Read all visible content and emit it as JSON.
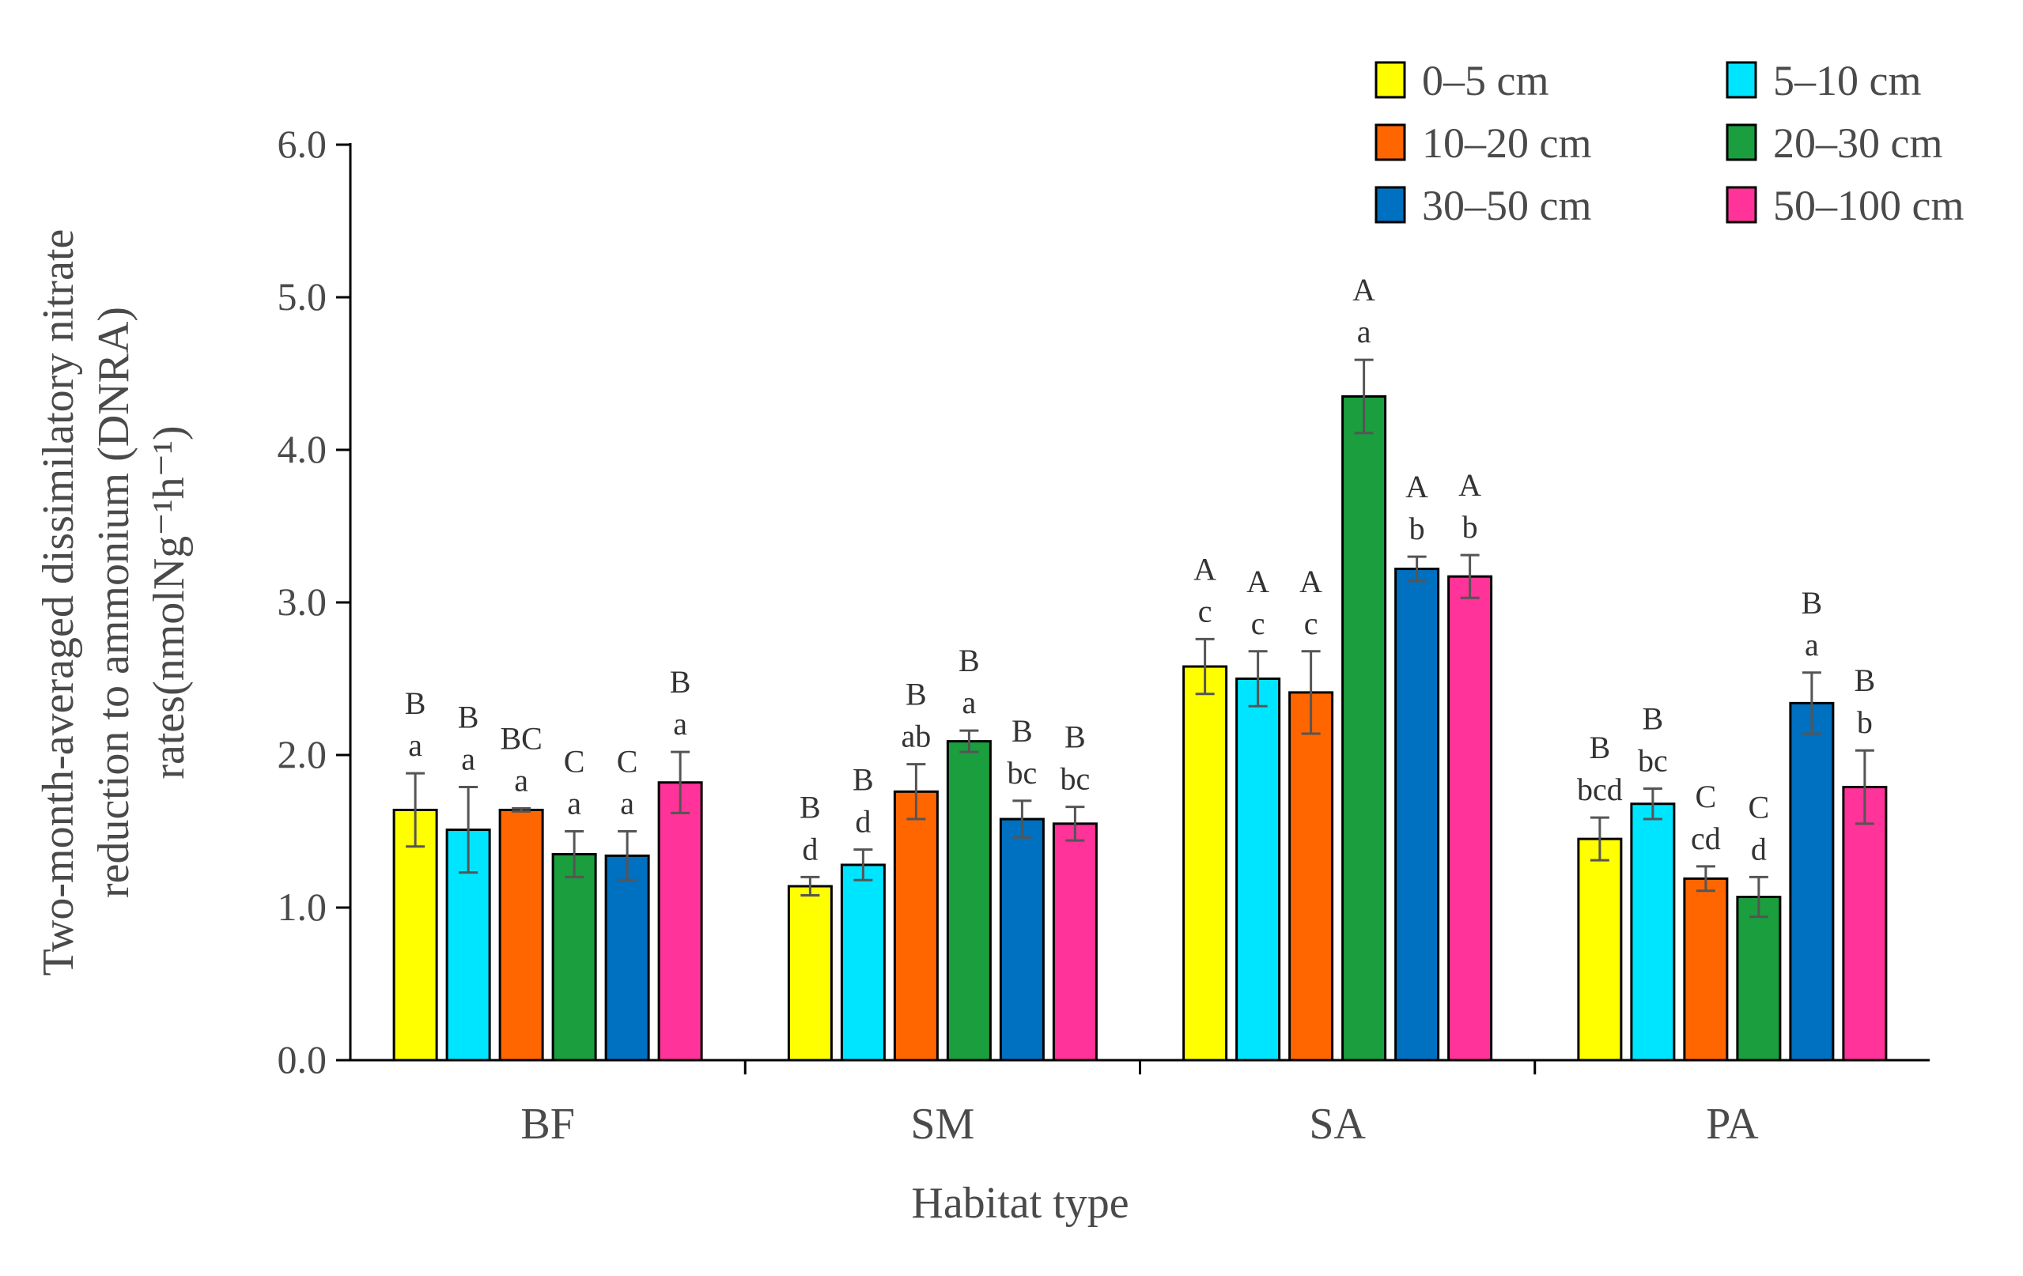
{
  "chart_data": {
    "type": "bar",
    "xlabel": "Habitat type",
    "ylabel_lines": [
      "Two-month-averaged dissimilatory nitrate",
      "reduction to ammonium (DNRA)",
      "rates(nmolNg⁻¹h⁻¹)"
    ],
    "ylim": [
      0,
      6.0
    ],
    "yticks": [
      "0.0",
      "1.0",
      "2.0",
      "3.0",
      "4.0",
      "5.0",
      "6.0"
    ],
    "categories": [
      "BF",
      "SM",
      "SA",
      "PA"
    ],
    "legend_position": "top-right",
    "series": [
      {
        "name": "0–5 cm",
        "color": "#ffff00",
        "values": [
          1.64,
          1.14,
          2.58,
          1.45
        ],
        "errors": [
          0.24,
          0.06,
          0.18,
          0.14
        ],
        "upper_letters": [
          "B",
          "B",
          "A",
          "B"
        ],
        "lower_letters": [
          "a",
          "d",
          "c",
          "bcd"
        ]
      },
      {
        "name": "5–10 cm",
        "color": "#00e5ff",
        "values": [
          1.51,
          1.28,
          2.5,
          1.68
        ],
        "errors": [
          0.28,
          0.1,
          0.18,
          0.1
        ],
        "upper_letters": [
          "B",
          "B",
          "A",
          "B"
        ],
        "lower_letters": [
          "a",
          "d",
          "c",
          "bc"
        ]
      },
      {
        "name": "10–20 cm",
        "color": "#ff6600",
        "values": [
          1.64,
          1.76,
          2.41,
          1.19
        ],
        "errors": [
          0.01,
          0.18,
          0.27,
          0.08
        ],
        "upper_letters": [
          "BC",
          "B",
          "A",
          "C"
        ],
        "lower_letters": [
          "a",
          "ab",
          "c",
          "cd"
        ]
      },
      {
        "name": "20–30 cm",
        "color": "#1a9e3e",
        "values": [
          1.35,
          2.09,
          4.35,
          1.07
        ],
        "errors": [
          0.15,
          0.07,
          0.24,
          0.13
        ],
        "upper_letters": [
          "C",
          "B",
          "A",
          "C"
        ],
        "lower_letters": [
          "a",
          "a",
          "a",
          "d"
        ]
      },
      {
        "name": "30–50 cm",
        "color": "#0070c0",
        "values": [
          1.34,
          1.58,
          3.22,
          2.34
        ],
        "errors": [
          0.16,
          0.12,
          0.08,
          0.2
        ],
        "upper_letters": [
          "C",
          "B",
          "A",
          "B"
        ],
        "lower_letters": [
          "a",
          "bc",
          "b",
          "a"
        ]
      },
      {
        "name": "50–100 cm",
        "color": "#ff3399",
        "values": [
          1.82,
          1.55,
          3.17,
          1.79
        ],
        "errors": [
          0.2,
          0.11,
          0.14,
          0.24
        ],
        "upper_letters": [
          "B",
          "B",
          "A",
          "B"
        ],
        "lower_letters": [
          "a",
          "bc",
          "b",
          "b"
        ]
      }
    ]
  }
}
